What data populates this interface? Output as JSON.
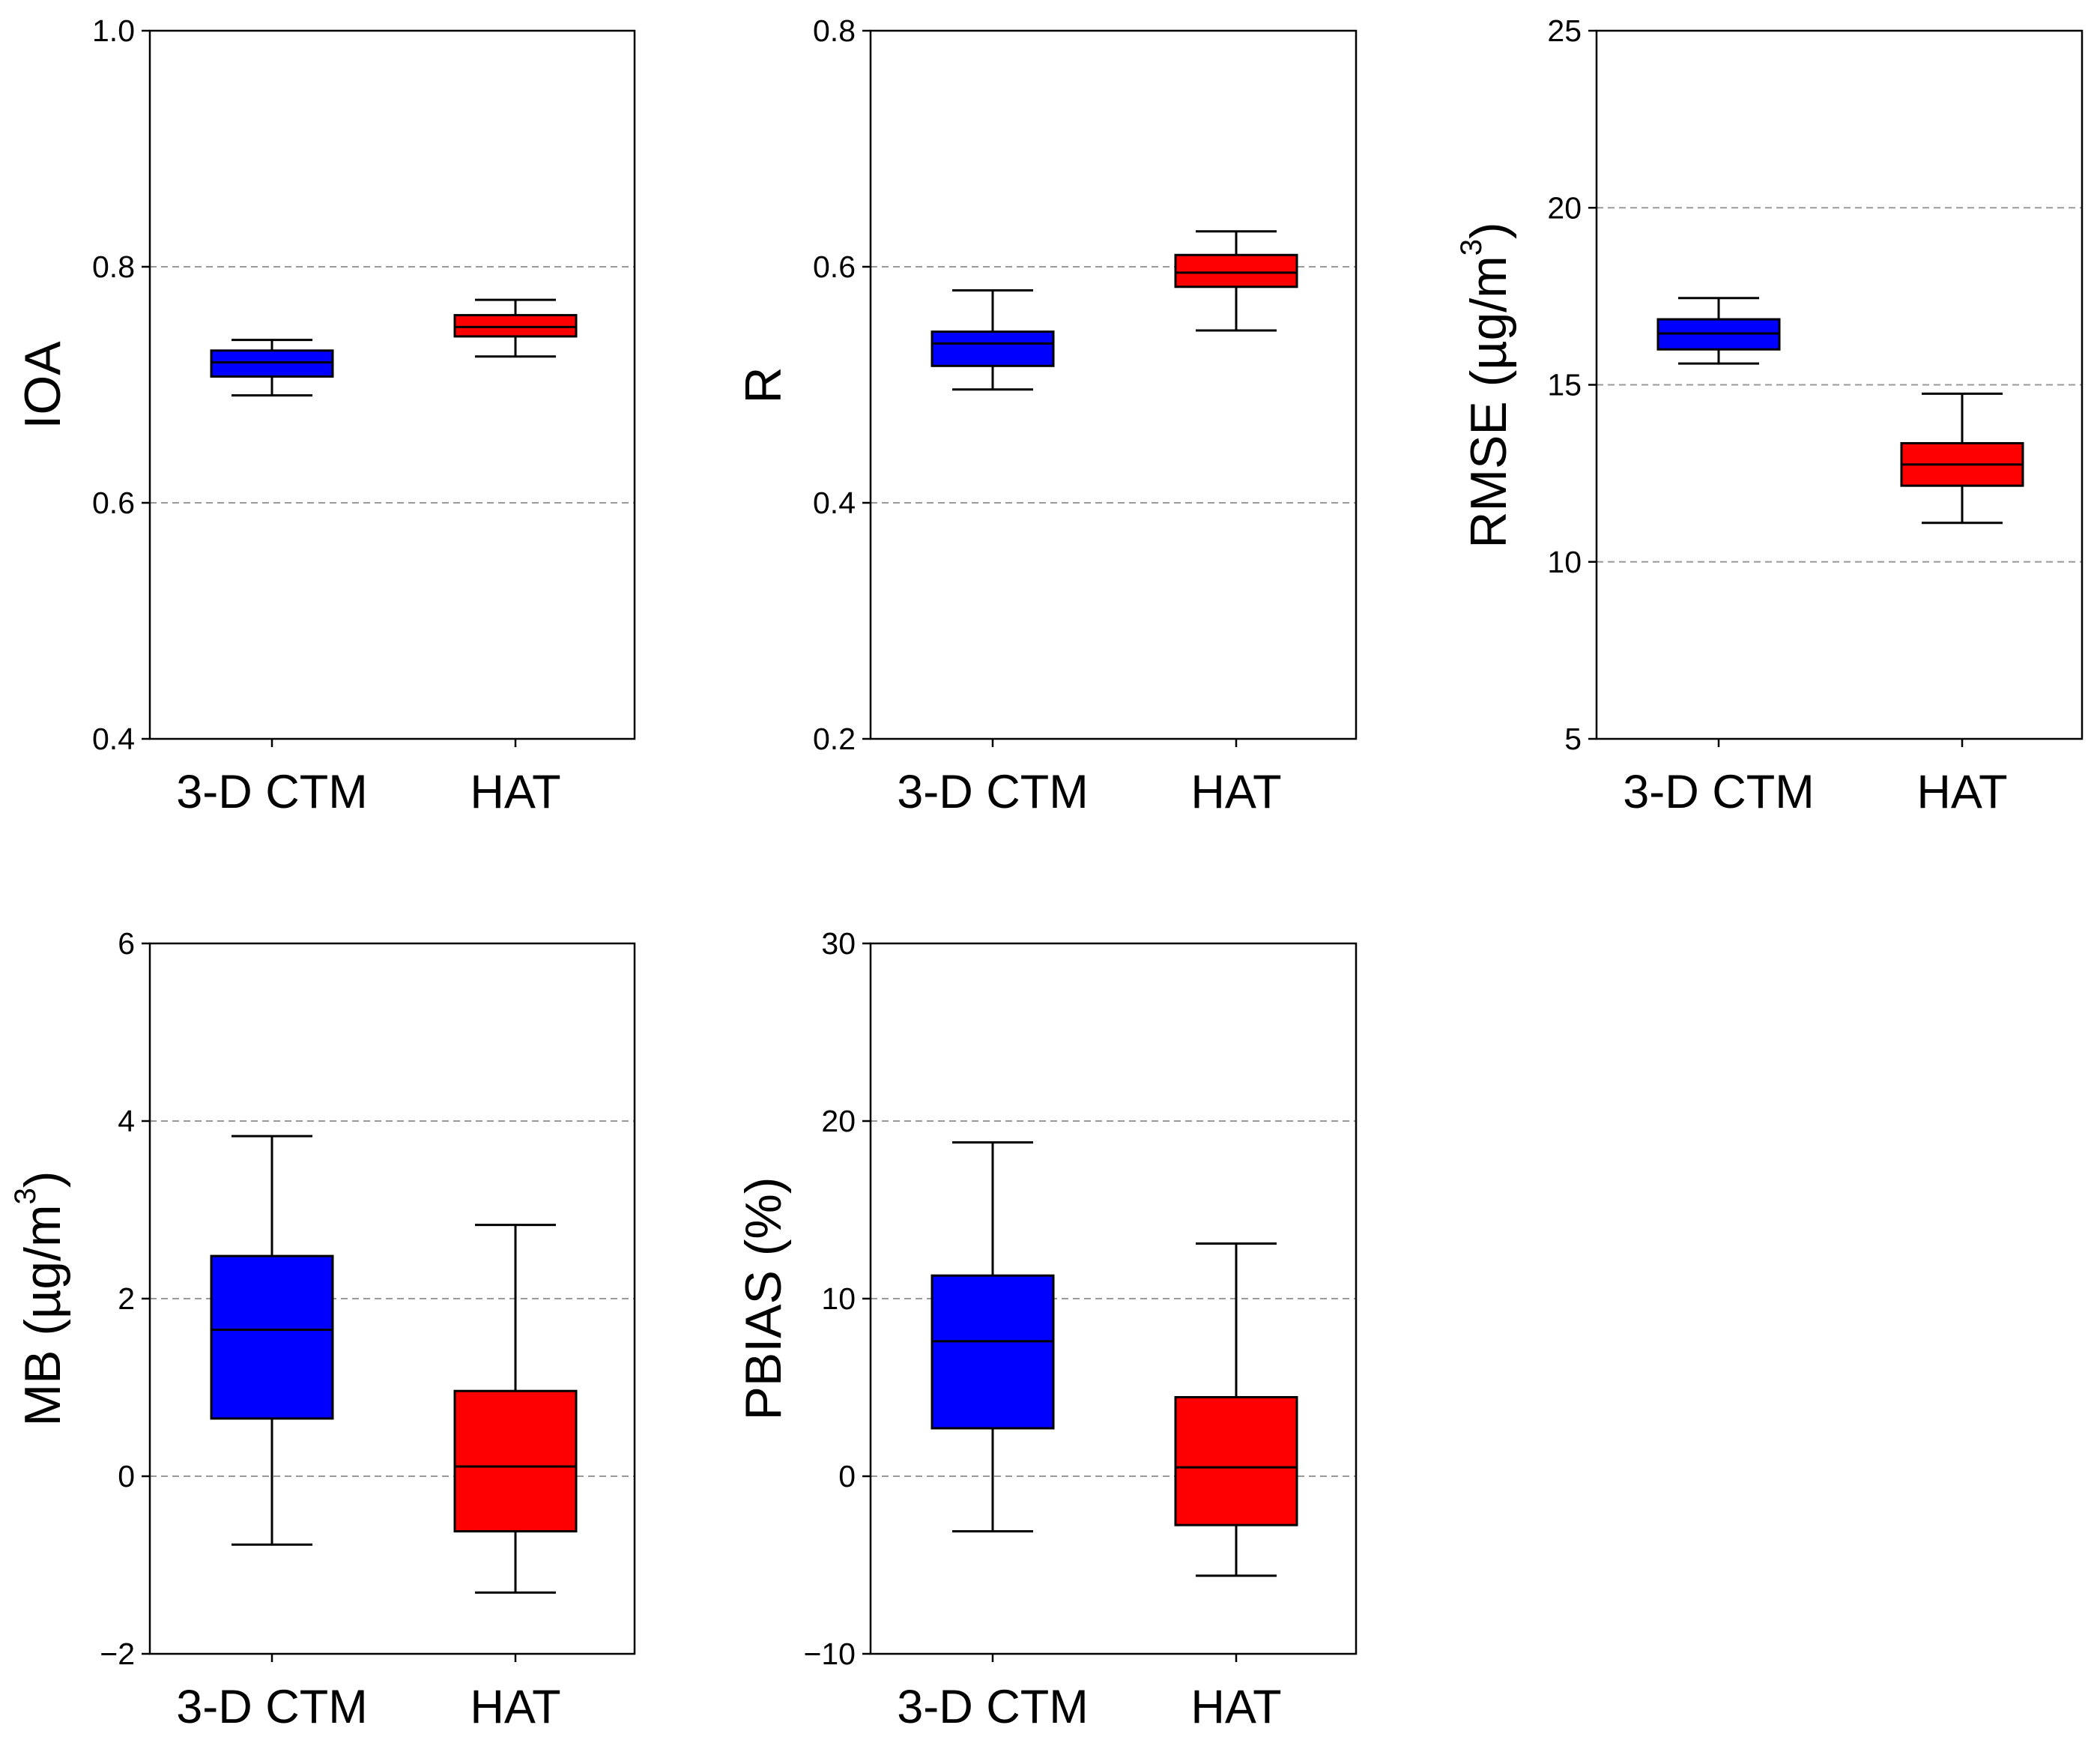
{
  "colors": {
    "CTM": "#0000ff",
    "HAT": "#ff0000",
    "grid": "#9a9a9a"
  },
  "chart_data": [
    {
      "type": "box",
      "id": "ioa",
      "ylabel": "IOA",
      "ylabel_sup": "",
      "ylabel_tail": "",
      "categories": [
        "3-D CTM",
        "HAT"
      ],
      "ylim": [
        0.4,
        1.0
      ],
      "ticks": [
        0.4,
        0.6,
        0.8,
        1.0
      ],
      "tick_labels": [
        "0.4",
        "0.6",
        "0.8",
        "1.0"
      ],
      "grid": [
        0.6,
        0.8,
        1.0
      ],
      "boxes": [
        {
          "category": "3-D CTM",
          "color_key": "CTM",
          "whislo": 0.691,
          "q1": 0.707,
          "med": 0.719,
          "q3": 0.729,
          "whishi": 0.738
        },
        {
          "category": "HAT",
          "color_key": "HAT",
          "whislo": 0.724,
          "q1": 0.741,
          "med": 0.749,
          "q3": 0.759,
          "whishi": 0.772
        }
      ]
    },
    {
      "type": "box",
      "id": "r",
      "ylabel": "R",
      "ylabel_sup": "",
      "ylabel_tail": "",
      "categories": [
        "3-D CTM",
        "HAT"
      ],
      "ylim": [
        0.2,
        0.8
      ],
      "ticks": [
        0.2,
        0.4,
        0.6,
        0.8
      ],
      "tick_labels": [
        "0.2",
        "0.4",
        "0.6",
        "0.8"
      ],
      "grid": [
        0.4,
        0.6
      ],
      "boxes": [
        {
          "category": "3-D CTM",
          "color_key": "CTM",
          "whislo": 0.496,
          "q1": 0.516,
          "med": 0.535,
          "q3": 0.545,
          "whishi": 0.58
        },
        {
          "category": "HAT",
          "color_key": "HAT",
          "whislo": 0.546,
          "q1": 0.583,
          "med": 0.595,
          "q3": 0.61,
          "whishi": 0.63
        }
      ]
    },
    {
      "type": "box",
      "id": "rmse",
      "ylabel": "RMSE (µg/m",
      "ylabel_sup": "3",
      "ylabel_tail": ")",
      "categories": [
        "3-D CTM",
        "HAT"
      ],
      "ylim": [
        5,
        25
      ],
      "ticks": [
        5,
        10,
        15,
        20,
        25
      ],
      "tick_labels": [
        "5",
        "10",
        "15",
        "20",
        "25"
      ],
      "grid": [
        10,
        15,
        20
      ],
      "boxes": [
        {
          "category": "3-D CTM",
          "color_key": "CTM",
          "whislo": 15.6,
          "q1": 16.0,
          "med": 16.45,
          "q3": 16.85,
          "whishi": 17.45
        },
        {
          "category": "HAT",
          "color_key": "HAT",
          "whislo": 11.1,
          "q1": 12.15,
          "med": 12.75,
          "q3": 13.35,
          "whishi": 14.75
        }
      ]
    },
    {
      "type": "box",
      "id": "mb",
      "ylabel": "MB (µg/m",
      "ylabel_sup": "3",
      "ylabel_tail": ")",
      "categories": [
        "3-D CTM",
        "HAT"
      ],
      "ylim": [
        -2,
        6
      ],
      "ticks": [
        -2,
        0,
        2,
        4,
        6
      ],
      "tick_labels": [
        "−2",
        "0",
        "2",
        "4",
        "6"
      ],
      "grid": [
        0,
        2,
        4
      ],
      "boxes": [
        {
          "category": "3-D CTM",
          "color_key": "CTM",
          "whislo": -0.77,
          "q1": 0.65,
          "med": 1.65,
          "q3": 2.48,
          "whishi": 3.83
        },
        {
          "category": "HAT",
          "color_key": "HAT",
          "whislo": -1.31,
          "q1": -0.62,
          "med": 0.11,
          "q3": 0.96,
          "whishi": 2.83
        }
      ]
    },
    {
      "type": "box",
      "id": "pbias",
      "ylabel": "PBIAS (%)",
      "ylabel_sup": "",
      "ylabel_tail": "",
      "categories": [
        "3-D CTM",
        "HAT"
      ],
      "ylim": [
        -10,
        30
      ],
      "ticks": [
        -10,
        0,
        10,
        20,
        30
      ],
      "tick_labels": [
        "−10",
        "0",
        "10",
        "20",
        "30"
      ],
      "grid": [
        0,
        10,
        20
      ],
      "boxes": [
        {
          "category": "3-D CTM",
          "color_key": "CTM",
          "whislo": -3.1,
          "q1": 2.7,
          "med": 7.6,
          "q3": 11.3,
          "whishi": 18.8
        },
        {
          "category": "HAT",
          "color_key": "HAT",
          "whislo": -5.6,
          "q1": -2.75,
          "med": 0.5,
          "q3": 4.45,
          "whishi": 13.1
        }
      ]
    }
  ]
}
